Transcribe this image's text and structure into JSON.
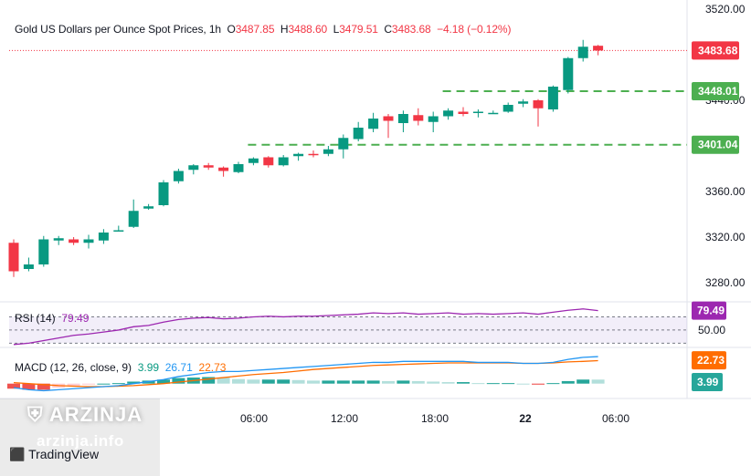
{
  "header": {
    "symbol_title": "Gold US Dollars per Ounce Spot Prices, 1h",
    "open_label": "O",
    "open_value": "3487.85",
    "high_label": "H",
    "high_value": "3488.60",
    "low_label": "L",
    "low_value": "3479.51",
    "close_label": "C",
    "close_value": "3483.68",
    "change": "−4.18 (−0.12%)"
  },
  "rsi": {
    "label": "RSI (14)",
    "value": "79.49",
    "level_label": "50.00",
    "badge": "79.49"
  },
  "macd": {
    "label": "MACD (12, 26, close, 9)",
    "hist_value": "3.99",
    "macd_value": "26.71",
    "signal_value": "22.73",
    "badge_signal": "22.73",
    "badge_hist": "3.99"
  },
  "price_axis": {
    "ticks": [
      "3520.00",
      "3440.00",
      "3360.00",
      "3320.00",
      "3280.00"
    ],
    "badges": [
      {
        "text": "3483.68",
        "color": "#f23645"
      },
      {
        "text": "3448.01",
        "color": "#4caf50"
      },
      {
        "text": "3401.04",
        "color": "#4caf50"
      }
    ]
  },
  "time_axis": {
    "ticks": [
      "06:00",
      "12:00",
      "18:00",
      "22",
      "06:00"
    ]
  },
  "watermark": {
    "brand": "ARZINJA",
    "site": "arzinja.info",
    "tv_logo": "TradingView"
  },
  "colors": {
    "up": "#089981",
    "down": "#f23645",
    "level": "#4caf50",
    "rsi": "#9c27b0",
    "macd": "#2196f3",
    "signal": "#ff6d00",
    "hist_pos": "#26a69a",
    "hist_neg": "#ef5350"
  },
  "chart_data": {
    "type": "candlestick",
    "title": "Gold US Dollars per Ounce Spot Prices, 1h",
    "ylim": [
      3264,
      3524
    ],
    "y_ticks": [
      3520,
      3440,
      3360,
      3320,
      3280
    ],
    "x_ticks": [
      "06:00",
      "12:00",
      "18:00",
      "22",
      "06:00"
    ],
    "candles": [
      {
        "o": 3315,
        "h": 3318,
        "l": 3285,
        "c": 3290
      },
      {
        "o": 3292,
        "h": 3302,
        "l": 3290,
        "c": 3296
      },
      {
        "o": 3296,
        "h": 3321,
        "l": 3294,
        "c": 3318
      },
      {
        "o": 3317,
        "h": 3321,
        "l": 3313,
        "c": 3319
      },
      {
        "o": 3318,
        "h": 3320,
        "l": 3313,
        "c": 3315
      },
      {
        "o": 3315,
        "h": 3322,
        "l": 3310,
        "c": 3318
      },
      {
        "o": 3317,
        "h": 3327,
        "l": 3314,
        "c": 3324
      },
      {
        "o": 3325,
        "h": 3330,
        "l": 3325,
        "c": 3326
      },
      {
        "o": 3329,
        "h": 3353,
        "l": 3328,
        "c": 3343
      },
      {
        "o": 3345,
        "h": 3349,
        "l": 3344,
        "c": 3347
      },
      {
        "o": 3348,
        "h": 3370,
        "l": 3347,
        "c": 3368
      },
      {
        "o": 3369,
        "h": 3380,
        "l": 3367,
        "c": 3378
      },
      {
        "o": 3379,
        "h": 3384,
        "l": 3375,
        "c": 3383
      },
      {
        "o": 3383,
        "h": 3385,
        "l": 3379,
        "c": 3381
      },
      {
        "o": 3381,
        "h": 3382,
        "l": 3373,
        "c": 3378
      },
      {
        "o": 3377,
        "h": 3386,
        "l": 3376,
        "c": 3384
      },
      {
        "o": 3385,
        "h": 3390,
        "l": 3383,
        "c": 3389
      },
      {
        "o": 3390,
        "h": 3391,
        "l": 3381,
        "c": 3383
      },
      {
        "o": 3383,
        "h": 3392,
        "l": 3382,
        "c": 3390
      },
      {
        "o": 3391,
        "h": 3394,
        "l": 3387,
        "c": 3393
      },
      {
        "o": 3393,
        "h": 3396,
        "l": 3390,
        "c": 3392
      },
      {
        "o": 3393,
        "h": 3400,
        "l": 3391,
        "c": 3397
      },
      {
        "o": 3397,
        "h": 3410,
        "l": 3389,
        "c": 3407
      },
      {
        "o": 3406,
        "h": 3421,
        "l": 3404,
        "c": 3416
      },
      {
        "o": 3415,
        "h": 3429,
        "l": 3412,
        "c": 3424
      },
      {
        "o": 3426,
        "h": 3428,
        "l": 3407,
        "c": 3422
      },
      {
        "o": 3420,
        "h": 3431,
        "l": 3412,
        "c": 3428
      },
      {
        "o": 3427,
        "h": 3433,
        "l": 3418,
        "c": 3422
      },
      {
        "o": 3421,
        "h": 3430,
        "l": 3412,
        "c": 3426
      },
      {
        "o": 3426,
        "h": 3433,
        "l": 3423,
        "c": 3431
      },
      {
        "o": 3430,
        "h": 3434,
        "l": 3426,
        "c": 3428
      },
      {
        "o": 3429,
        "h": 3432,
        "l": 3425,
        "c": 3430
      },
      {
        "o": 3429,
        "h": 3431,
        "l": 3428,
        "c": 3429
      },
      {
        "o": 3430,
        "h": 3438,
        "l": 3429,
        "c": 3436
      },
      {
        "o": 3437,
        "h": 3441,
        "l": 3434,
        "c": 3439
      },
      {
        "o": 3440,
        "h": 3441,
        "l": 3417,
        "c": 3433
      },
      {
        "o": 3432,
        "h": 3453,
        "l": 3430,
        "c": 3452
      },
      {
        "o": 3449,
        "h": 3478,
        "l": 3446,
        "c": 3477
      },
      {
        "o": 3477,
        "h": 3493,
        "l": 3474,
        "c": 3487
      },
      {
        "o": 3487.85,
        "h": 3488.6,
        "l": 3479.51,
        "c": 3483.68
      }
    ],
    "levels": [
      {
        "value": 3448.01,
        "style": "dashed",
        "from_index": 29
      },
      {
        "value": 3401.04,
        "style": "dashed",
        "from_index": 16
      }
    ],
    "last_price": 3483.68,
    "rsi": {
      "period": 14,
      "ylim": [
        25,
        90
      ],
      "bands": [
        70,
        30
      ],
      "mid": 50,
      "values": [
        28,
        30,
        34,
        38,
        42,
        44,
        47,
        50,
        55,
        57,
        62,
        66,
        68,
        69,
        67,
        68,
        70,
        71,
        70,
        71,
        71,
        72,
        73,
        74,
        76,
        75,
        76,
        74,
        75,
        76,
        74,
        75,
        74,
        75,
        76,
        74,
        77,
        80,
        82,
        79.49
      ]
    },
    "macd": {
      "params": "12, 26, close, 9",
      "ylim": [
        -12,
        34
      ],
      "macd": [
        -4,
        -6,
        -7,
        -6,
        -5,
        -4,
        -3,
        -2,
        0,
        2,
        4,
        7,
        9,
        11,
        12,
        12,
        13,
        14,
        15,
        16,
        17,
        18,
        19,
        20,
        21,
        21,
        22,
        22,
        22,
        22,
        22,
        21,
        21,
        21,
        20,
        20,
        21,
        24,
        26,
        26.71
      ],
      "signal": [
        1,
        0,
        -1,
        -2,
        -2.5,
        -3,
        -3,
        -2.5,
        -2,
        -1,
        0,
        1.5,
        3,
        4.5,
        6,
        7.5,
        9,
        10,
        11,
        12.5,
        14,
        15,
        16,
        17,
        18,
        18.5,
        19,
        19.5,
        20,
        20.5,
        20.5,
        20.5,
        20.5,
        20.5,
        20,
        20,
        20.5,
        21.5,
        22,
        22.73
      ],
      "histogram": [
        -5,
        -6,
        -6,
        -4,
        -2.5,
        -1,
        0,
        0.5,
        2,
        3,
        4,
        5.5,
        6,
        6.5,
        6,
        4.5,
        4,
        4,
        4,
        3.5,
        3,
        3,
        3,
        3,
        3,
        2.5,
        3,
        2.5,
        2,
        1.5,
        1.5,
        0.5,
        0.5,
        0.5,
        0,
        -1,
        0.5,
        2.5,
        4,
        3.99
      ]
    }
  }
}
